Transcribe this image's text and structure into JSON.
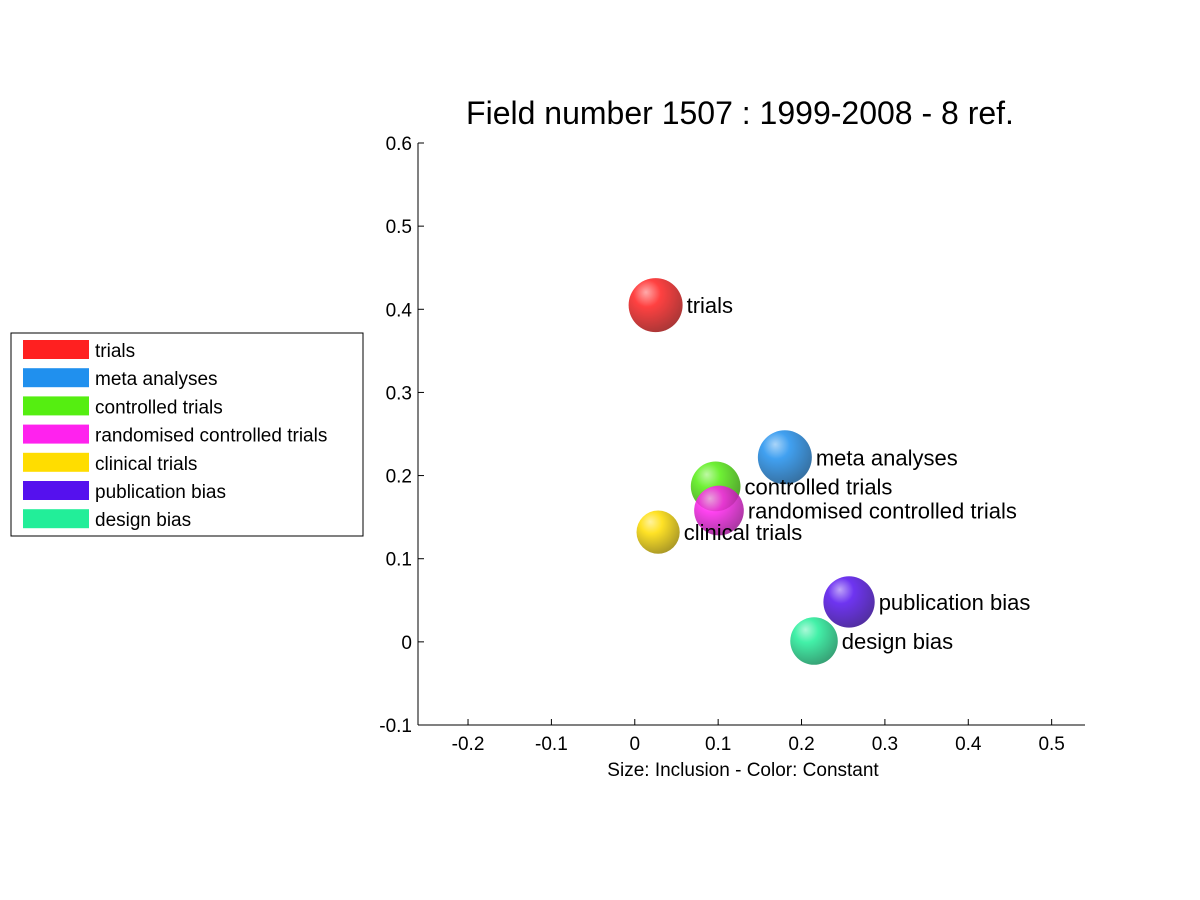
{
  "chart_data": {
    "type": "scatter",
    "title": "Field number 1507 : 1999-2008  - 8 ref.",
    "xlabel": "Size: Inclusion - Color: Constant",
    "ylabel": "",
    "xlim": [
      -0.26,
      0.54
    ],
    "ylim": [
      -0.1,
      0.6
    ],
    "xticks": [
      -0.2,
      -0.1,
      0,
      0.1,
      0.2,
      0.3,
      0.4,
      0.5
    ],
    "xtick_labels": [
      "-0.2",
      "-0.1",
      "0",
      "0.1",
      "0.2",
      "0.3",
      "0.4",
      "0.5"
    ],
    "yticks": [
      -0.1,
      0,
      0.1,
      0.2,
      0.3,
      0.4,
      0.5,
      0.6
    ],
    "ytick_labels": [
      "-0.1",
      "0",
      "0.1",
      "0.2",
      "0.3",
      "0.4",
      "0.5",
      "0.6"
    ],
    "grid": false,
    "legend_position": "left",
    "series": [
      {
        "name": "trials",
        "x": 0.025,
        "y": 0.405,
        "size": 1.0,
        "color": "#ff2020"
      },
      {
        "name": "meta analyses",
        "x": 0.18,
        "y": 0.222,
        "size": 1.0,
        "color": "#2090ee"
      },
      {
        "name": "controlled trials",
        "x": 0.097,
        "y": 0.187,
        "size": 0.92,
        "color": "#55ee11"
      },
      {
        "name": "randomised controlled trials",
        "x": 0.101,
        "y": 0.158,
        "size": 0.92,
        "color": "#ff22ee"
      },
      {
        "name": "clinical trials",
        "x": 0.028,
        "y": 0.132,
        "size": 0.8,
        "color": "#ffdd00"
      },
      {
        "name": "publication bias",
        "x": 0.257,
        "y": 0.048,
        "size": 0.95,
        "color": "#5511ee"
      },
      {
        "name": "design bias",
        "x": 0.215,
        "y": 0.001,
        "size": 0.88,
        "color": "#22ee99"
      }
    ]
  }
}
